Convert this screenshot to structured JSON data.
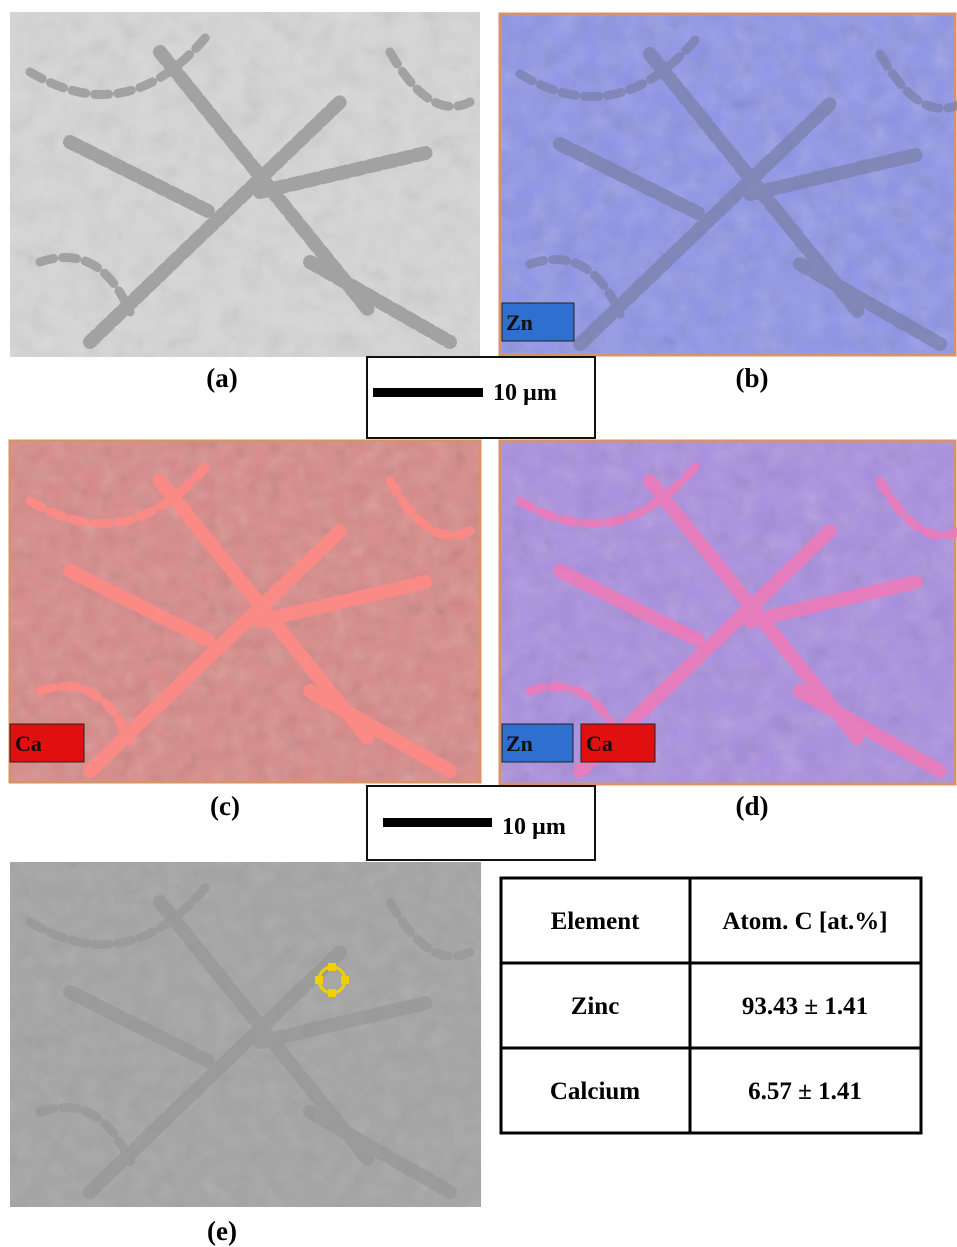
{
  "panels": [
    {
      "label": "(a)"
    },
    {
      "label": "(b)",
      "legend": [
        "Zn"
      ]
    },
    {
      "label": "(c)",
      "legend": [
        "Ca"
      ]
    },
    {
      "label": "(d)",
      "legend": [
        "Zn",
        "Ca"
      ]
    },
    {
      "label": "(e)"
    }
  ],
  "scale_bars": [
    "10 µm",
    "10 µm"
  ],
  "table": {
    "header": [
      "Element",
      "Atom. C [at.%]"
    ],
    "rows": [
      [
        "Zinc",
        "93.43 ± 1.41"
      ],
      [
        "Calcium",
        "6.57 ± 1.41"
      ]
    ]
  }
}
